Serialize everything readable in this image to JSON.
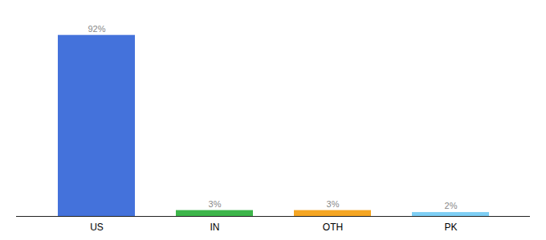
{
  "chart_data": {
    "type": "bar",
    "categories": [
      "US",
      "IN",
      "OTH",
      "PK"
    ],
    "values": [
      92,
      3,
      3,
      2
    ],
    "colors": [
      "#4472db",
      "#3db54a",
      "#f5a623",
      "#7ecef4"
    ],
    "ylim": [
      0,
      100
    ],
    "tick_labels": "x",
    "grid": false,
    "data_labels": true,
    "value_labels": [
      "92%",
      "3%",
      "3%",
      "2%"
    ]
  }
}
